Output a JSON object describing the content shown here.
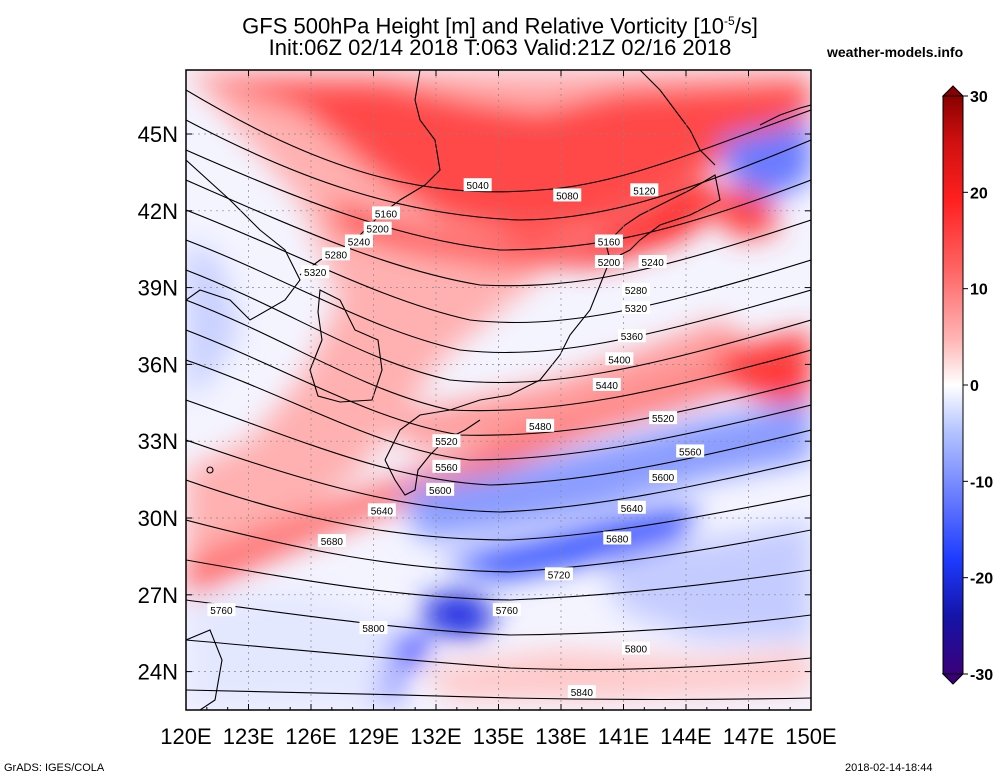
{
  "title": {
    "line1_pre": "GFS 500hPa Height [m] and Relative Vorticity [10",
    "line1_sup": "-5",
    "line1_post": "/s]",
    "line2": "Init:06Z 02/14 2018 T:063 Valid:21Z 02/16 2018"
  },
  "site": "weather-models.info",
  "footer": {
    "left": "GrADS: IGES/COLA",
    "right": "2018-02-14-18:44"
  },
  "map": {
    "lon_range": [
      120,
      150
    ],
    "lat_range": [
      22.5,
      47.5
    ],
    "lon_ticks": [
      "120E",
      "123E",
      "126E",
      "129E",
      "132E",
      "135E",
      "138E",
      "141E",
      "144E",
      "147E",
      "150E"
    ],
    "lat_ticks": [
      "24N",
      "27N",
      "30N",
      "33N",
      "36N",
      "39N",
      "42N",
      "45N"
    ],
    "grid": true
  },
  "colorbar": {
    "range": [
      -30,
      30
    ],
    "ticks": [
      "30",
      "20",
      "10",
      "0",
      "-10",
      "-20",
      "-30"
    ],
    "colors": [
      "#3a007a",
      "#1414a8",
      "#1e3cff",
      "#6478ff",
      "#a0b4ff",
      "#d2dcff",
      "#ffffff",
      "#ffd2d2",
      "#ffa0a0",
      "#ff6464",
      "#ff2020",
      "#d01010",
      "#8a0000"
    ]
  },
  "contours": [
    {
      "label": "5040",
      "lon": 134.0,
      "lat": 43.0
    },
    {
      "label": "5080",
      "lon": 138.3,
      "lat": 42.6
    },
    {
      "label": "5120",
      "lon": 142.0,
      "lat": 42.8
    },
    {
      "label": "5160",
      "lon": 129.6,
      "lat": 41.9
    },
    {
      "label": "5200",
      "lon": 129.2,
      "lat": 41.3
    },
    {
      "label": "5240",
      "lon": 128.3,
      "lat": 40.8
    },
    {
      "label": "5280",
      "lon": 127.2,
      "lat": 40.3
    },
    {
      "label": "5320",
      "lon": 126.2,
      "lat": 39.6
    },
    {
      "label": "5160",
      "lon": 140.3,
      "lat": 40.8
    },
    {
      "label": "5200",
      "lon": 140.3,
      "lat": 40.0
    },
    {
      "label": "5240",
      "lon": 142.4,
      "lat": 40.0
    },
    {
      "label": "5280",
      "lon": 141.6,
      "lat": 38.9
    },
    {
      "label": "5320",
      "lon": 141.6,
      "lat": 38.2
    },
    {
      "label": "5360",
      "lon": 141.4,
      "lat": 37.1
    },
    {
      "label": "5400",
      "lon": 140.8,
      "lat": 36.2
    },
    {
      "label": "5440",
      "lon": 140.2,
      "lat": 35.2
    },
    {
      "label": "5480",
      "lon": 137.0,
      "lat": 33.6
    },
    {
      "label": "5520",
      "lon": 132.5,
      "lat": 33.0
    },
    {
      "label": "5520",
      "lon": 142.9,
      "lat": 33.9
    },
    {
      "label": "5560",
      "lon": 132.5,
      "lat": 32.0
    },
    {
      "label": "5560",
      "lon": 144.2,
      "lat": 32.6
    },
    {
      "label": "5600",
      "lon": 132.2,
      "lat": 31.1
    },
    {
      "label": "5600",
      "lon": 142.9,
      "lat": 31.6
    },
    {
      "label": "5640",
      "lon": 129.4,
      "lat": 30.3
    },
    {
      "label": "5640",
      "lon": 141.4,
      "lat": 30.4
    },
    {
      "label": "5680",
      "lon": 127.0,
      "lat": 29.1
    },
    {
      "label": "5680",
      "lon": 140.7,
      "lat": 29.2
    },
    {
      "label": "5720",
      "lon": 137.9,
      "lat": 27.8
    },
    {
      "label": "5760",
      "lon": 121.7,
      "lat": 26.4
    },
    {
      "label": "5760",
      "lon": 135.4,
      "lat": 26.4
    },
    {
      "label": "5800",
      "lon": 129.0,
      "lat": 25.7
    },
    {
      "label": "5800",
      "lon": 141.6,
      "lat": 24.9
    },
    {
      "label": "5840",
      "lon": 139.0,
      "lat": 23.2
    }
  ]
}
